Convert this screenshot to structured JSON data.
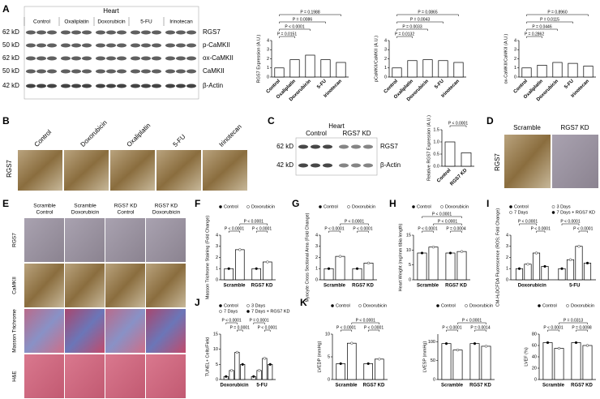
{
  "panel_labels": [
    "A",
    "B",
    "C",
    "D",
    "E",
    "F",
    "G",
    "H",
    "I",
    "J",
    "K"
  ],
  "blot_a": {
    "title": "Heart",
    "lanes": [
      "Control",
      "Oxaliplatin",
      "Doxorubicin",
      "5-FU",
      "Irinotecan"
    ],
    "sizes": [
      "62 kD",
      "50 kD",
      "62 kD",
      "50 kD",
      "42 kD"
    ],
    "bands": [
      "RGS7",
      "p-CaMKII",
      "ox-CaMKII",
      "CaMKII",
      "β-Actin"
    ]
  },
  "images_b": {
    "row_label": "RGS7",
    "columns": [
      "Control",
      "Doxorubicin",
      "Oxaliplatin",
      "5-FU",
      "Irinotecan"
    ]
  },
  "blot_c": {
    "title": "Heart",
    "lanes": [
      "Control",
      "RGS7 KD"
    ],
    "sizes": [
      "62 kD",
      "42 kD"
    ],
    "bands": [
      "RGS7",
      "β-Actin"
    ]
  },
  "images_d": {
    "row_label": "RGS7",
    "columns": [
      "Scramble",
      "RGS7 KD"
    ]
  },
  "images_e": {
    "columns": [
      [
        "Scramble",
        "Control"
      ],
      [
        "Scramble",
        "Doxorubicin"
      ],
      [
        "RGS7 KD",
        "Control"
      ],
      [
        "RGS7 KD",
        "Doxorubicin"
      ]
    ],
    "rows": [
      "RGS7",
      "CaMKII",
      "Masson Trichrome",
      "H&E"
    ]
  },
  "chart_data": [
    {
      "type": "bar",
      "ylabel": "RGS7 Expression (A.U.)",
      "categories": [
        "Control",
        "Oxaliplatin",
        "Doxorubicin",
        "5-FU",
        "Irinotecan"
      ],
      "values": [
        1.0,
        1.9,
        2.4,
        1.9,
        1.6
      ],
      "ylim": [
        0,
        4
      ],
      "yticks": [
        0,
        1,
        2,
        3,
        4
      ],
      "annotations": [
        "P = 0.1988",
        "P = 0.0086",
        "P < 0.0001",
        "P = 0.0151"
      ]
    },
    {
      "type": "bar",
      "ylabel": "pCaMKII/CaMKII (A.U.)",
      "categories": [
        "Control",
        "Oxaliplatin",
        "Doxorubicin",
        "5-FU",
        "Irinotecan"
      ],
      "values": [
        1.0,
        1.8,
        1.9,
        1.8,
        1.6
      ],
      "ylim": [
        0,
        4
      ],
      "yticks": [
        0,
        1,
        2,
        3,
        4
      ],
      "annotations": [
        "P = 0.0865",
        "P = 0.0043",
        "P = 0.0033",
        "P = 0.0132"
      ]
    },
    {
      "type": "bar",
      "ylabel": "ox-CaMKII/CaMKII (A.U.)",
      "categories": [
        "Control",
        "Oxaliplatin",
        "Doxorubicin",
        "5-FU",
        "Irinotecan"
      ],
      "values": [
        1.0,
        1.3,
        1.6,
        1.5,
        1.2
      ],
      "ylim": [
        0,
        4
      ],
      "yticks": [
        0,
        1,
        2,
        3,
        4
      ],
      "annotations": [
        "P = 0.8960",
        "P = 0.0115",
        "P = 0.0446",
        "P = 0.2862"
      ]
    },
    {
      "type": "bar",
      "ylabel": "Relative RGS7 Expression (A.U.)",
      "categories": [
        "Control",
        "RGS7 KD"
      ],
      "values": [
        1.0,
        0.55
      ],
      "ylim": [
        0,
        1.5
      ],
      "yticks": [
        {
          "value": 0,
          "label": "0.0"
        },
        0.5,
        {
          "value": 1,
          "label": "1.0"
        },
        1.5
      ],
      "annotations": [
        "P < 0.0001"
      ]
    },
    {
      "type": "grouped_bar",
      "ylabel": "Masson Trichrome Staining (Fold Change)",
      "categories": [
        "Scramble",
        "RGS7 KD"
      ],
      "series": [
        {
          "name": "Control",
          "color": "#000000",
          "values": [
            1.0,
            1.0
          ]
        },
        {
          "name": "Doxorubicin",
          "color": "#ffffff",
          "values": [
            2.7,
            1.6
          ]
        }
      ],
      "ylim": [
        0,
        4
      ],
      "yticks": [
        0,
        1,
        2,
        3,
        4
      ],
      "annotations": [
        "P < 0.0001",
        "P < 0.0001",
        "P < 0.0001"
      ]
    },
    {
      "type": "grouped_bar",
      "ylabel": "Myocyte Cross Sectional Area (Fold Change)",
      "categories": [
        "Scramble",
        "RGS7 KD"
      ],
      "series": [
        {
          "name": "Control",
          "color": "#000000",
          "values": [
            1.0,
            1.0
          ]
        },
        {
          "name": "Doxorubicin",
          "color": "#ffffff",
          "values": [
            2.1,
            1.5
          ]
        }
      ],
      "ylim": [
        0,
        4
      ],
      "yticks": [
        0,
        1,
        2,
        3,
        4
      ],
      "annotations": [
        "P < 0.0001",
        "P < 0.0001",
        "P < 0.0001"
      ]
    },
    {
      "type": "grouped_bar",
      "ylabel": "Heart Weight (mg/mm tibia length)",
      "categories": [
        "Scramble",
        "RGS7 KD"
      ],
      "series": [
        {
          "name": "Control",
          "color": "#000000",
          "values": [
            9,
            9
          ]
        },
        {
          "name": "Doxorubicin",
          "color": "#ffffff",
          "values": [
            11,
            9.5
          ]
        }
      ],
      "ylim": [
        0,
        15
      ],
      "yticks": [
        0,
        5,
        10,
        15
      ],
      "annotations": [
        "P < 0.0001",
        "P = 0.0004",
        "P < 0.0001",
        "P < 0.0001"
      ]
    },
    {
      "type": "grouped_bar",
      "ylabel": "CM-H₂DCFDA Fluorescence (ROS; Fold Change)",
      "categories": [
        "Doxorubicin",
        "5-FU"
      ],
      "series": [
        {
          "name": "Control",
          "color": "#000000",
          "values": [
            1.0,
            1.0
          ]
        },
        {
          "name": "3 Days",
          "color": "#ffffff",
          "values": [
            1.4,
            1.8
          ]
        },
        {
          "name": "7 Days",
          "color": "#ffffff",
          "values": [
            2.4,
            3.0
          ]
        },
        {
          "name": "7 Days + RGS7 KD",
          "color": "#000000",
          "values": [
            1.2,
            1.5
          ]
        }
      ],
      "ylim": [
        0,
        4
      ],
      "yticks": [
        0,
        1,
        2,
        3,
        4
      ],
      "annotations": [
        "P < 0.0001",
        "P < 0.0001",
        "P < 0.0001",
        "P < 0.0001"
      ]
    },
    {
      "type": "grouped_bar",
      "ylabel": "TUNEL+ Cells/Field",
      "categories": [
        "Doxorubicin",
        "5-FU"
      ],
      "series": [
        {
          "name": "Control",
          "color": "#000000",
          "values": [
            1,
            1
          ]
        },
        {
          "name": "3 Days",
          "color": "#ffffff",
          "values": [
            3,
            3
          ]
        },
        {
          "name": "7 Days",
          "color": "#ffffff",
          "values": [
            9,
            7
          ]
        },
        {
          "name": "7 Days + RGS7 KD",
          "color": "#000000",
          "values": [
            5,
            5
          ]
        }
      ],
      "ylim": [
        0,
        15
      ],
      "yticks": [
        0,
        5,
        10,
        15
      ],
      "annotations": [
        "P < 0.0001",
        "P = 0.0001",
        "P = 0.0001",
        "P < 0.0001"
      ]
    },
    {
      "type": "grouped_bar",
      "ylabel": "LVEDP (mmHg)",
      "categories": [
        "Scramble",
        "RGS7 KD"
      ],
      "series": [
        {
          "name": "Control",
          "color": "#000000",
          "values": [
            3.5,
            3.5
          ]
        },
        {
          "name": "Doxorubicin",
          "color": "#ffffff",
          "values": [
            8,
            4.5
          ]
        }
      ],
      "ylim": [
        0,
        10
      ],
      "yticks": [
        0,
        5,
        10
      ],
      "annotations": [
        "P < 0.0001",
        "P < 0.0001",
        "P < 0.0001"
      ]
    },
    {
      "type": "grouped_bar",
      "ylabel": "LVESP (mmHg)",
      "categories": [
        "Scramble",
        "RGS7 KD"
      ],
      "series": [
        {
          "name": "Control",
          "color": "#000000",
          "values": [
            95,
            95
          ]
        },
        {
          "name": "Doxorubicin",
          "color": "#ffffff",
          "values": [
            78,
            88
          ]
        }
      ],
      "ylim": [
        0,
        120
      ],
      "yticks": [
        0,
        50,
        100
      ],
      "annotations": [
        "P < 0.0001",
        "P = 0.0014",
        "P < 0.0001"
      ]
    },
    {
      "type": "grouped_bar",
      "ylabel": "LVEF (%)",
      "categories": [
        "Scramble",
        "RGS7 KD"
      ],
      "series": [
        {
          "name": "Control",
          "color": "#000000",
          "values": [
            65,
            65
          ]
        },
        {
          "name": "Doxorubicin",
          "color": "#ffffff",
          "values": [
            55,
            60
          ]
        }
      ],
      "ylim": [
        0,
        80
      ],
      "yticks": [
        0,
        20,
        40,
        60,
        80
      ],
      "annotations": [
        "P < 0.0001",
        "P = 0.0098",
        "P = 0.0313"
      ]
    }
  ]
}
